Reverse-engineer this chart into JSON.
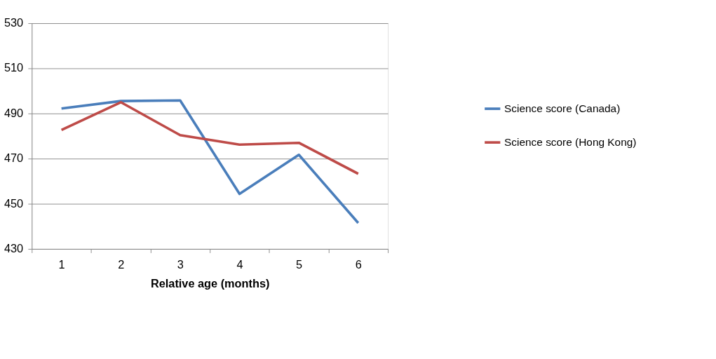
{
  "chart_data": {
    "type": "line",
    "xlabel": "Relative age (months)",
    "categories": [
      "1",
      "2",
      "3",
      "4",
      "5",
      "6"
    ],
    "series": [
      {
        "name": "Science score (Canada)",
        "color": "#4a7ebb",
        "values": [
          492.2,
          495.5,
          495.8,
          454.4,
          471.7,
          441.5
        ]
      },
      {
        "name": "Science score (Hong Kong)",
        "color": "#be4b48",
        "values": [
          482.7,
          495,
          480.4,
          476.2,
          477,
          463.3
        ]
      }
    ],
    "ylim": [
      430,
      530
    ],
    "yticks": [
      430,
      450,
      470,
      490,
      510,
      530
    ],
    "grid": "y",
    "legend": "right",
    "marker": "none",
    "line_style": "solid"
  }
}
